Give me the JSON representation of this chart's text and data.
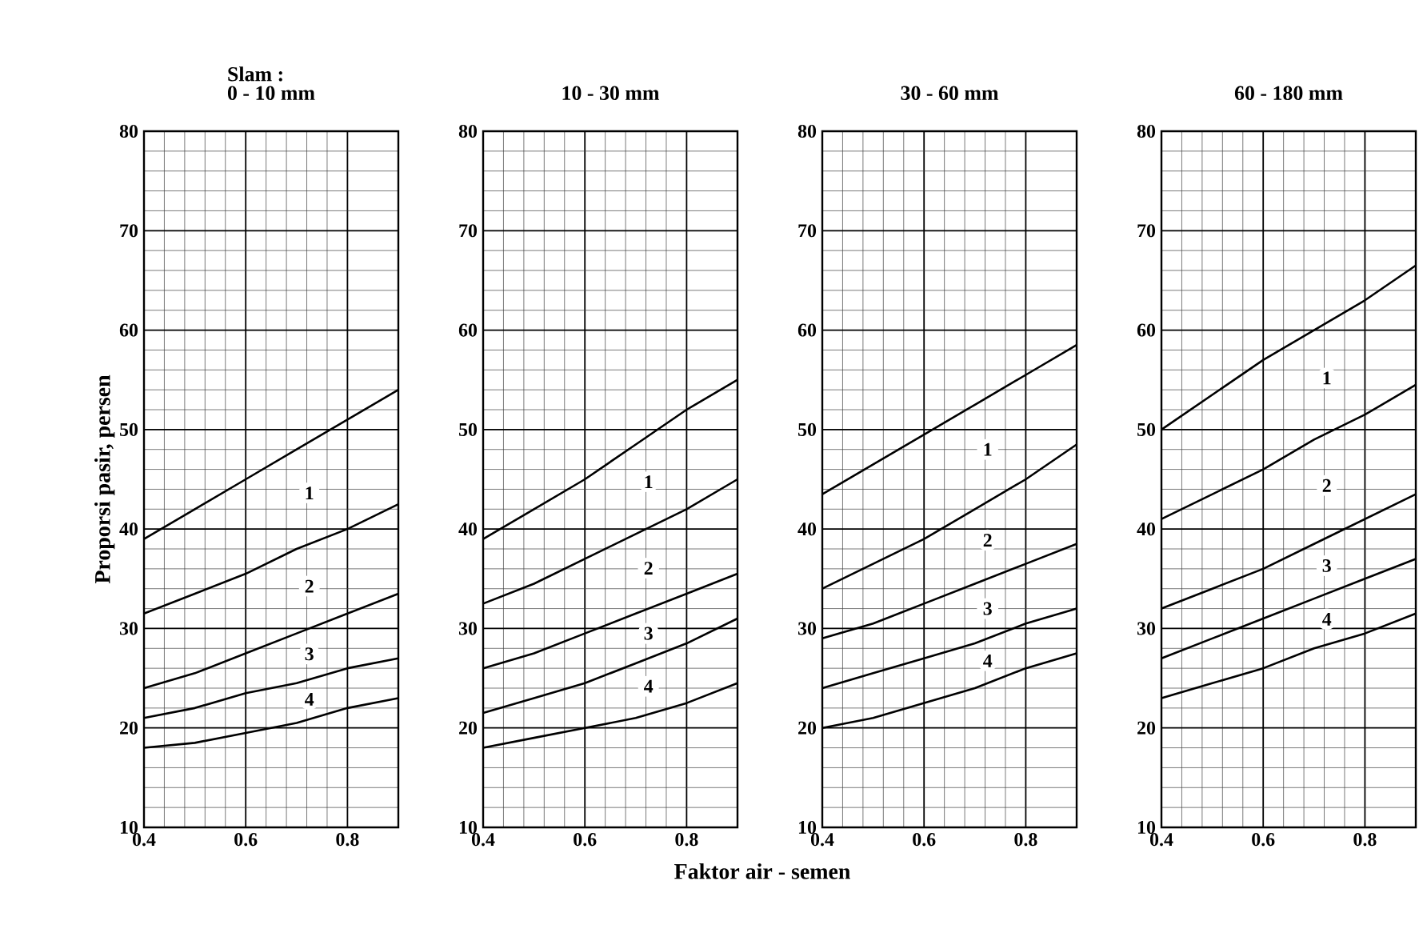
{
  "chart_data": [
    {
      "type": "line",
      "title": "Slam :",
      "subtitle": "0 - 10 mm",
      "ylabel": "Proporsi pasir, persen",
      "annotations": [
        "1",
        "2",
        "3",
        "4"
      ],
      "x": [
        0.4,
        0.5,
        0.6,
        0.7,
        0.8,
        0.9
      ],
      "xlim": [
        0.4,
        0.9
      ],
      "ylim": [
        10,
        80
      ],
      "xticks": [
        0.4,
        0.6,
        0.8
      ],
      "yticks": [
        10,
        20,
        30,
        40,
        50,
        60,
        70,
        80
      ],
      "grid": true,
      "marker": "none",
      "series": [
        {
          "color": "#000000",
          "values": [
            39,
            42,
            45,
            48,
            51,
            54
          ]
        },
        {
          "color": "#000000",
          "values": [
            31.5,
            33.5,
            35.5,
            38,
            40,
            42.5
          ]
        },
        {
          "color": "#000000",
          "values": [
            24,
            25.5,
            27.5,
            29.5,
            31.5,
            33.5
          ]
        },
        {
          "color": "#000000",
          "values": [
            21,
            22,
            23.5,
            24.5,
            26,
            27
          ]
        },
        {
          "color": "#000000",
          "values": [
            18,
            18.5,
            19.5,
            20.5,
            22,
            23
          ]
        }
      ]
    },
    {
      "type": "line",
      "title": "10 - 30 mm",
      "xlabel": "Faktor air - semen",
      "annotations": [
        "1",
        "2",
        "3",
        "4"
      ],
      "x": [
        0.4,
        0.5,
        0.6,
        0.7,
        0.8,
        0.9
      ],
      "xlim": [
        0.4,
        0.9
      ],
      "ylim": [
        10,
        80
      ],
      "xticks": [
        0.4,
        0.6,
        0.8
      ],
      "yticks": [
        10,
        20,
        30,
        40,
        50,
        60,
        70,
        80
      ],
      "grid": true,
      "marker": "none",
      "series": [
        {
          "color": "#000000",
          "values": [
            39,
            42,
            45,
            48.5,
            52,
            55
          ]
        },
        {
          "color": "#000000",
          "values": [
            32.5,
            34.5,
            37,
            39.5,
            42,
            45
          ]
        },
        {
          "color": "#000000",
          "values": [
            26,
            27.5,
            29.5,
            31.5,
            33.5,
            35.5
          ]
        },
        {
          "color": "#000000",
          "values": [
            21.5,
            23,
            24.5,
            26.5,
            28.5,
            31
          ]
        },
        {
          "color": "#000000",
          "values": [
            18,
            19,
            20,
            21,
            22.5,
            24.5
          ]
        }
      ]
    },
    {
      "type": "line",
      "title": "30 - 60 mm",
      "annotations": [
        "1",
        "2",
        "3",
        "4"
      ],
      "x": [
        0.4,
        0.5,
        0.6,
        0.7,
        0.8,
        0.9
      ],
      "xlim": [
        0.4,
        0.9
      ],
      "ylim": [
        10,
        80
      ],
      "xticks": [
        0.4,
        0.6,
        0.8
      ],
      "yticks": [
        10,
        20,
        30,
        40,
        50,
        60,
        70,
        80
      ],
      "grid": true,
      "marker": "none",
      "series": [
        {
          "color": "#000000",
          "values": [
            43.5,
            46.5,
            49.5,
            52.5,
            55.5,
            58.5
          ]
        },
        {
          "color": "#000000",
          "values": [
            34,
            36.5,
            39,
            42,
            45,
            48.5
          ]
        },
        {
          "color": "#000000",
          "values": [
            29,
            30.5,
            32.5,
            34.5,
            36.5,
            38.5
          ]
        },
        {
          "color": "#000000",
          "values": [
            24,
            25.5,
            27,
            28.5,
            30.5,
            32
          ]
        },
        {
          "color": "#000000",
          "values": [
            20,
            21,
            22.5,
            24,
            26,
            27.5
          ]
        }
      ]
    },
    {
      "type": "line",
      "title": "60 - 180 mm",
      "annotations": [
        "1",
        "2",
        "3",
        "4"
      ],
      "x": [
        0.4,
        0.5,
        0.6,
        0.7,
        0.8,
        0.9
      ],
      "xlim": [
        0.4,
        0.9
      ],
      "ylim": [
        10,
        80
      ],
      "xticks": [
        0.4,
        0.6,
        0.8
      ],
      "yticks": [
        10,
        20,
        30,
        40,
        50,
        60,
        70,
        80
      ],
      "grid": true,
      "marker": "none",
      "series": [
        {
          "color": "#000000",
          "values": [
            50,
            53.5,
            57,
            60,
            63,
            66.5
          ]
        },
        {
          "color": "#000000",
          "values": [
            41,
            43.5,
            46,
            49,
            51.5,
            54.5
          ]
        },
        {
          "color": "#000000",
          "values": [
            32,
            34,
            36,
            38.5,
            41,
            43.5
          ]
        },
        {
          "color": "#000000",
          "values": [
            27,
            29,
            31,
            33,
            35,
            37
          ]
        },
        {
          "color": "#000000",
          "values": [
            23,
            24.5,
            26,
            28,
            29.5,
            31.5
          ]
        }
      ]
    }
  ]
}
